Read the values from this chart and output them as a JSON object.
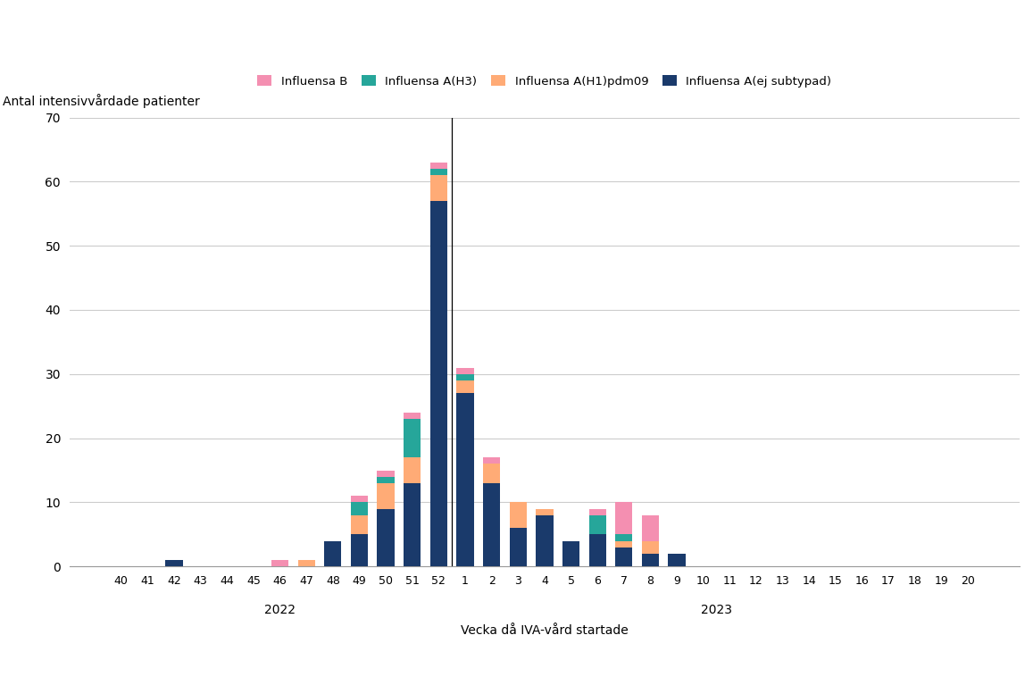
{
  "weeks": [
    "40",
    "41",
    "42",
    "43",
    "44",
    "45",
    "46",
    "47",
    "48",
    "49",
    "50",
    "51",
    "52",
    "1",
    "2",
    "3",
    "4",
    "5",
    "6",
    "7",
    "8",
    "9",
    "10",
    "11",
    "12",
    "13",
    "14",
    "15",
    "16",
    "17",
    "18",
    "19",
    "20"
  ],
  "influensa_B": [
    0,
    0,
    0,
    0,
    0,
    0,
    1,
    0,
    0,
    1,
    1,
    1,
    1,
    1,
    1,
    0,
    0,
    0,
    1,
    5,
    4,
    0,
    0,
    0,
    0,
    0,
    0,
    0,
    0,
    0,
    0,
    0,
    0
  ],
  "influensa_A_H3": [
    0,
    0,
    0,
    0,
    0,
    0,
    0,
    0,
    0,
    2,
    1,
    6,
    1,
    1,
    0,
    0,
    0,
    0,
    3,
    1,
    0,
    0,
    0,
    0,
    0,
    0,
    0,
    0,
    0,
    0,
    0,
    0,
    0
  ],
  "influensa_A_H1pdm09": [
    0,
    0,
    0,
    0,
    0,
    0,
    0,
    1,
    0,
    3,
    4,
    4,
    4,
    2,
    3,
    4,
    1,
    0,
    0,
    1,
    2,
    0,
    0,
    0,
    0,
    0,
    0,
    0,
    0,
    0,
    0,
    0,
    0
  ],
  "influensa_A_ej_subtypad": [
    0,
    0,
    1,
    0,
    0,
    0,
    0,
    0,
    4,
    5,
    9,
    13,
    57,
    27,
    13,
    6,
    8,
    4,
    5,
    3,
    2,
    2,
    0,
    0,
    0,
    0,
    0,
    0,
    0,
    0,
    0,
    0,
    0
  ],
  "color_B": "#f48fb1",
  "color_H3": "#26a69a",
  "color_H1pdm09": "#ffab76",
  "color_ej_subtypad": "#1a3a6b",
  "ylabel": "Antal intensivvårdade patienter",
  "xlabel": "Vecka då IVA-vård startade",
  "ylim": [
    0,
    70
  ],
  "yticks": [
    0,
    10,
    20,
    30,
    40,
    50,
    60,
    70
  ],
  "legend_labels": [
    "Influensa B",
    "Influensa A(H3)",
    "Influensa A(H1)pdm09",
    "Influensa A(ej subtypad)"
  ],
  "divider_index": 12,
  "background_color": "#ffffff",
  "grid_color": "#cccccc"
}
